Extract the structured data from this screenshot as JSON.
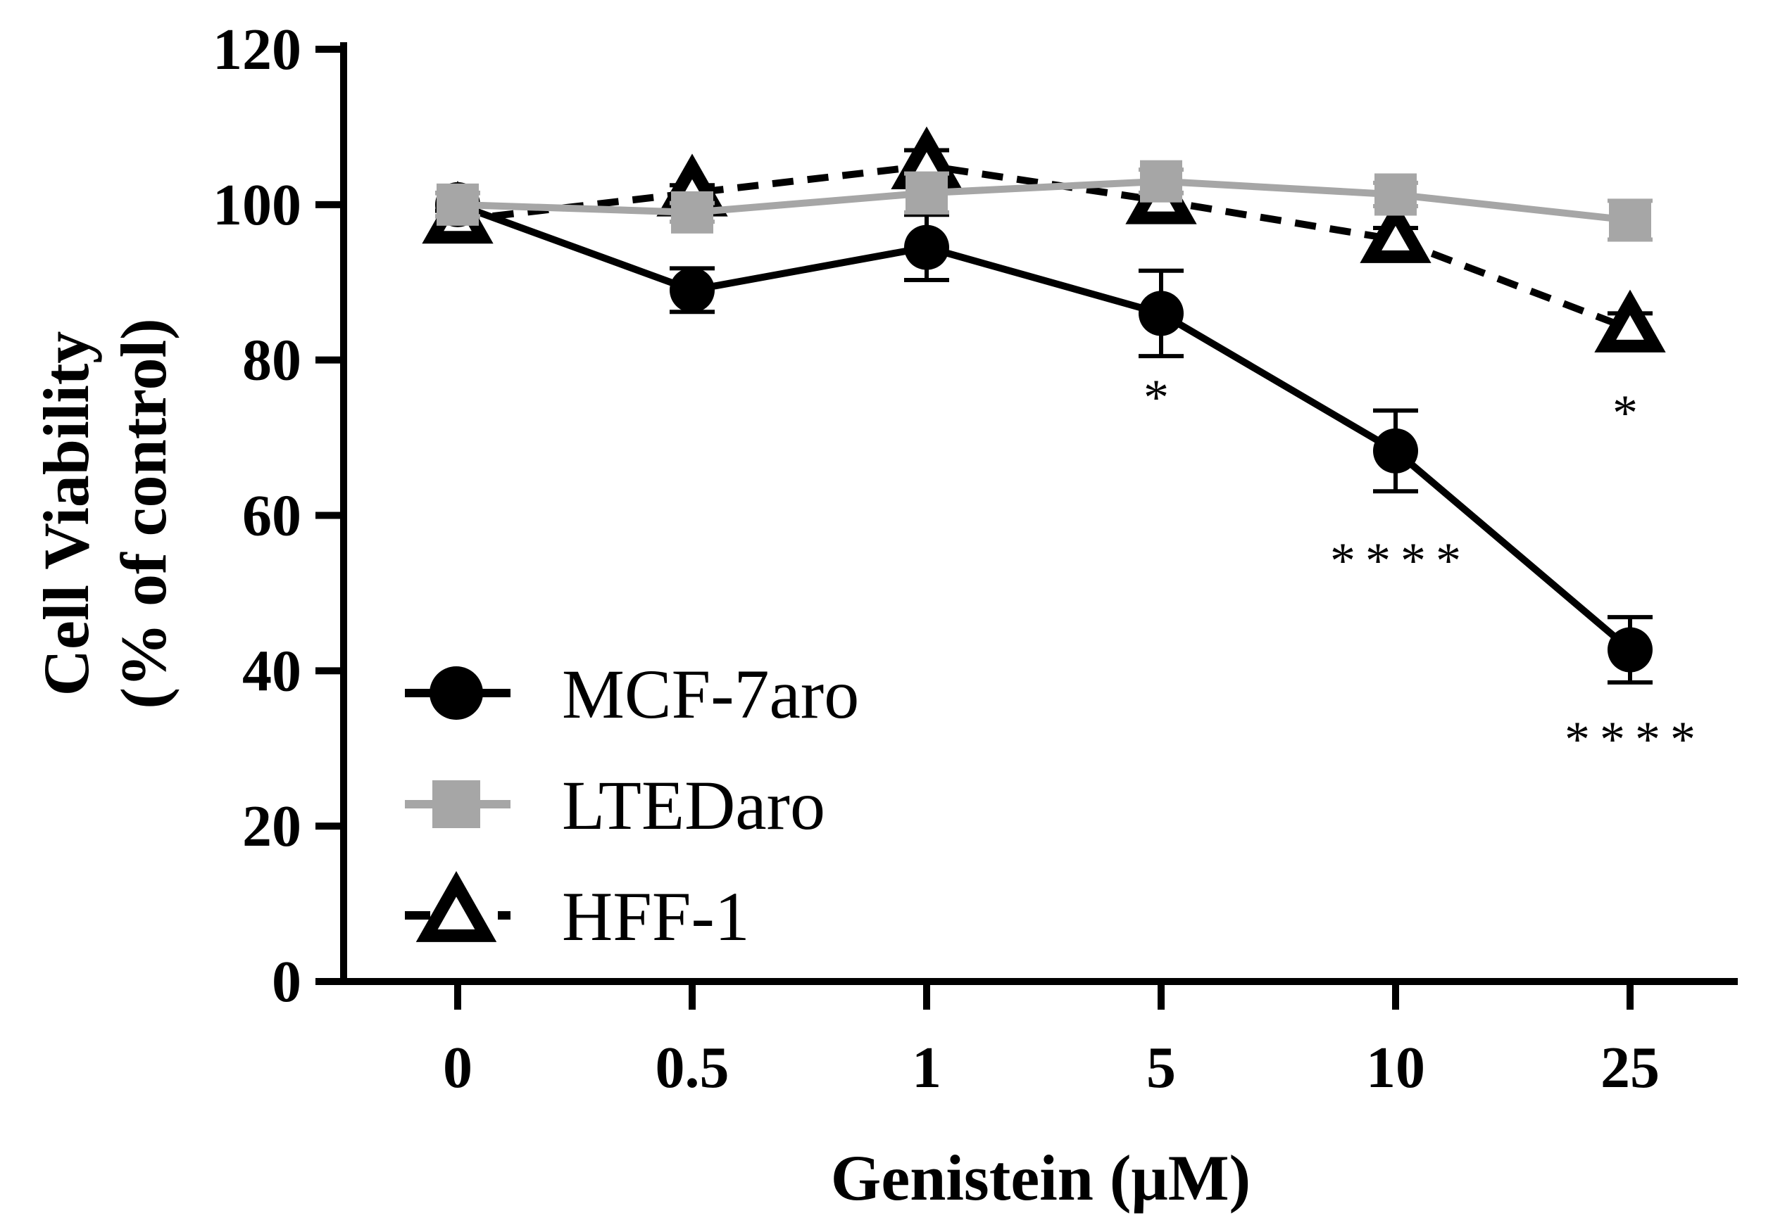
{
  "chart_data": {
    "type": "line",
    "title": "",
    "xlabel": "Genistein (μM)",
    "ylabel_lines": [
      "Cell Viability",
      "(% of control)"
    ],
    "categories": [
      "0",
      "0.5",
      "1",
      "5",
      "10",
      "25"
    ],
    "ylim": [
      0,
      120
    ],
    "yticks": [
      0,
      20,
      40,
      60,
      80,
      100,
      120
    ],
    "grid": false,
    "legend_position": "bottom-left",
    "series": [
      {
        "name": "MCF-7aro",
        "color": "#000000",
        "line_style": "solid",
        "marker": "circle",
        "values": [
          100,
          89,
          94.5,
          86,
          68.3,
          42.7
        ],
        "errors": [
          1.5,
          2.8,
          4.2,
          5.5,
          5.2,
          4.2
        ]
      },
      {
        "name": "LTEDaro",
        "color": "#a6a6a6",
        "line_style": "solid",
        "marker": "square",
        "values": [
          100,
          99,
          101.5,
          103,
          101.3,
          98
        ],
        "errors": [
          1.5,
          1.2,
          2.5,
          1.5,
          1.5,
          2.5
        ]
      },
      {
        "name": "HFF-1",
        "color": "#000000",
        "line_style": "dashed",
        "marker": "triangle",
        "values": [
          98,
          101.5,
          105,
          100.5,
          95.5,
          84
        ],
        "errors": [
          1.2,
          1.0,
          2.0,
          1.0,
          1.5,
          2.0
        ]
      }
    ],
    "annotations": [
      {
        "category": "5",
        "text": "*",
        "value": 73
      },
      {
        "category": "10",
        "text": "****",
        "value": 52
      },
      {
        "category": "25",
        "text": "*",
        "value": 71
      },
      {
        "category": "25",
        "text": "****",
        "value": 29
      }
    ]
  }
}
